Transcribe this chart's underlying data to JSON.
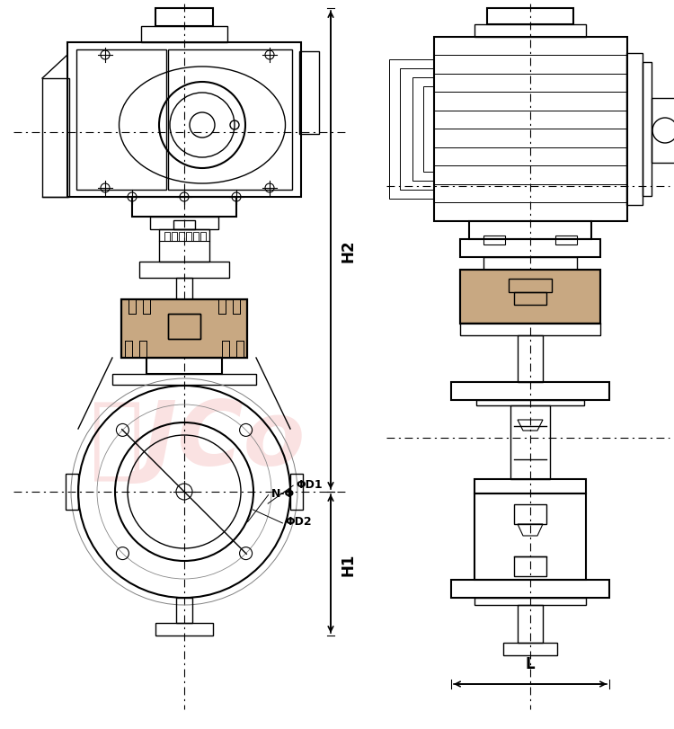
{
  "bg_color": "#ffffff",
  "line_color": "#000000",
  "dash_color": "#000000",
  "watermark_color": "#f5c0c0",
  "dim_color": "#000000",
  "label_color": "#1a1a1a",
  "title": "",
  "H1_label": "H1",
  "H2_label": "H2",
  "L_label": "L",
  "NF_label": "N-Φ",
  "D1_label": "ΦD1",
  "D2_label": "ΦD2"
}
